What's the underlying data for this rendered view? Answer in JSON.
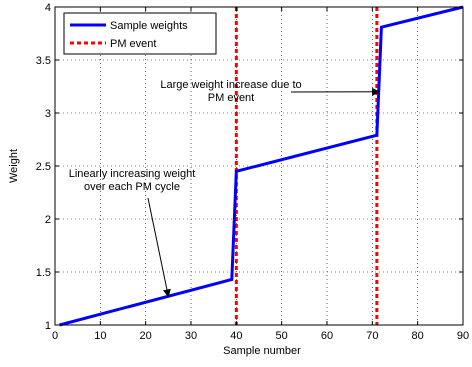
{
  "chart_data": {
    "type": "line",
    "xlabel": "Sample number",
    "ylabel": "Weight",
    "xlim": [
      0,
      90
    ],
    "ylim": [
      1,
      4
    ],
    "xticks": [
      0,
      10,
      20,
      30,
      40,
      50,
      60,
      70,
      80,
      90
    ],
    "yticks": [
      1,
      1.5,
      2,
      2.5,
      3,
      3.5,
      4
    ],
    "yticklabels": [
      "1",
      "1.5",
      "2",
      "2.5",
      "3",
      "3.5",
      "4"
    ],
    "grid": true,
    "legend": {
      "placement": "top-left",
      "entries": [
        "Sample weights",
        "PM event"
      ]
    },
    "series": [
      {
        "name": "Sample weights",
        "color": "#0000ff",
        "style": "solid",
        "x": [
          1,
          39,
          40,
          71,
          72,
          90
        ],
        "y": [
          1.0,
          1.43,
          2.45,
          2.79,
          3.81,
          4.0
        ]
      }
    ],
    "events": {
      "name": "PM event",
      "color": "#ff0000",
      "style": "dotted",
      "x": [
        40,
        71
      ]
    },
    "annotations": [
      {
        "lines": [
          "Linearly increasing weight",
          "over each PM cycle"
        ],
        "arrow_to": [
          25,
          1.27
        ]
      },
      {
        "lines": [
          "Large weight increase due to",
          "PM event"
        ],
        "arrow_to": [
          71.5,
          3.2
        ]
      }
    ]
  }
}
